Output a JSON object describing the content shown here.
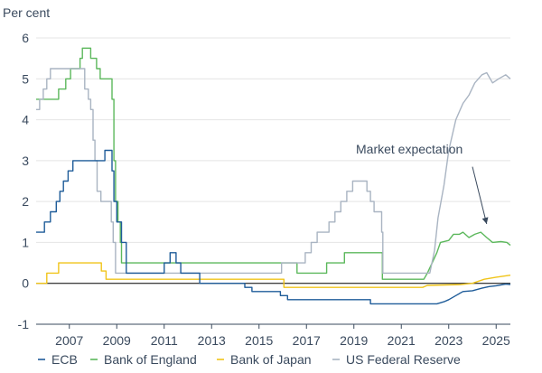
{
  "chart_data": {
    "type": "line",
    "ylabel": "Per cent",
    "ylim": [
      -1,
      6
    ],
    "y_ticks": [
      "-1",
      "0",
      "1",
      "2",
      "3",
      "4",
      "5",
      "6"
    ],
    "y_tick_values": [
      -1,
      0,
      1,
      2,
      3,
      4,
      5,
      6
    ],
    "xlim": [
      2005.6,
      2025.6
    ],
    "x_ticks": [
      "2007",
      "2009",
      "2011",
      "2013",
      "2015",
      "2017",
      "2019",
      "2021",
      "2023",
      "2025"
    ],
    "x_tick_values": [
      2007,
      2009,
      2011,
      2013,
      2015,
      2017,
      2019,
      2021,
      2023,
      2025
    ],
    "grid": "horizontal",
    "legend_position": "bottom",
    "annotation": {
      "text": "Market expectation",
      "arrow_from": [
        2024.0,
        2.85
      ],
      "arrow_to": [
        2024.6,
        1.45
      ]
    },
    "series": [
      {
        "name": "ECB",
        "color": "#1f5c99",
        "points": [
          [
            2005.6,
            1.25
          ],
          [
            2005.95,
            1.25
          ],
          [
            2005.95,
            1.5
          ],
          [
            2006.2,
            1.5
          ],
          [
            2006.2,
            1.75
          ],
          [
            2006.45,
            1.75
          ],
          [
            2006.45,
            2.0
          ],
          [
            2006.6,
            2.0
          ],
          [
            2006.6,
            2.25
          ],
          [
            2006.75,
            2.25
          ],
          [
            2006.75,
            2.5
          ],
          [
            2006.95,
            2.5
          ],
          [
            2006.95,
            2.75
          ],
          [
            2007.15,
            2.75
          ],
          [
            2007.15,
            3.0
          ],
          [
            2008.5,
            3.0
          ],
          [
            2008.5,
            3.25
          ],
          [
            2008.8,
            3.25
          ],
          [
            2008.8,
            2.75
          ],
          [
            2008.88,
            2.75
          ],
          [
            2008.88,
            2.0
          ],
          [
            2009.0,
            2.0
          ],
          [
            2009.0,
            1.5
          ],
          [
            2009.2,
            1.5
          ],
          [
            2009.2,
            1.0
          ],
          [
            2009.4,
            1.0
          ],
          [
            2009.4,
            0.25
          ],
          [
            2011.0,
            0.25
          ],
          [
            2011.0,
            0.5
          ],
          [
            2011.25,
            0.5
          ],
          [
            2011.25,
            0.75
          ],
          [
            2011.5,
            0.75
          ],
          [
            2011.5,
            0.5
          ],
          [
            2011.7,
            0.5
          ],
          [
            2011.7,
            0.25
          ],
          [
            2012.5,
            0.25
          ],
          [
            2012.5,
            0.0
          ],
          [
            2014.4,
            0.0
          ],
          [
            2014.4,
            -0.1
          ],
          [
            2014.7,
            -0.1
          ],
          [
            2014.7,
            -0.2
          ],
          [
            2015.9,
            -0.2
          ],
          [
            2015.9,
            -0.3
          ],
          [
            2016.2,
            -0.3
          ],
          [
            2016.2,
            -0.4
          ],
          [
            2019.7,
            -0.4
          ],
          [
            2019.7,
            -0.5
          ],
          [
            2022.5,
            -0.5
          ],
          [
            2022.8,
            -0.45
          ],
          [
            2023.0,
            -0.4
          ],
          [
            2023.3,
            -0.3
          ],
          [
            2023.6,
            -0.2
          ],
          [
            2024.0,
            -0.18
          ],
          [
            2024.4,
            -0.12
          ],
          [
            2024.7,
            -0.08
          ],
          [
            2025.0,
            -0.06
          ],
          [
            2025.4,
            -0.02
          ],
          [
            2025.6,
            -0.03
          ]
        ]
      },
      {
        "name": "Bank of England",
        "color": "#5cb85c",
        "points": [
          [
            2005.6,
            4.5
          ],
          [
            2006.55,
            4.5
          ],
          [
            2006.55,
            4.75
          ],
          [
            2006.85,
            4.75
          ],
          [
            2006.85,
            5.0
          ],
          [
            2007.05,
            5.0
          ],
          [
            2007.05,
            5.25
          ],
          [
            2007.45,
            5.25
          ],
          [
            2007.45,
            5.5
          ],
          [
            2007.55,
            5.5
          ],
          [
            2007.55,
            5.75
          ],
          [
            2007.9,
            5.75
          ],
          [
            2007.9,
            5.5
          ],
          [
            2008.15,
            5.5
          ],
          [
            2008.15,
            5.25
          ],
          [
            2008.3,
            5.25
          ],
          [
            2008.3,
            5.0
          ],
          [
            2008.8,
            5.0
          ],
          [
            2008.8,
            4.5
          ],
          [
            2008.88,
            4.5
          ],
          [
            2008.88,
            3.0
          ],
          [
            2008.95,
            3.0
          ],
          [
            2008.95,
            2.0
          ],
          [
            2009.05,
            2.0
          ],
          [
            2009.05,
            1.5
          ],
          [
            2009.15,
            1.5
          ],
          [
            2009.15,
            1.0
          ],
          [
            2009.2,
            1.0
          ],
          [
            2009.2,
            0.5
          ],
          [
            2016.6,
            0.5
          ],
          [
            2016.6,
            0.25
          ],
          [
            2017.85,
            0.25
          ],
          [
            2017.85,
            0.5
          ],
          [
            2018.6,
            0.5
          ],
          [
            2018.6,
            0.75
          ],
          [
            2020.2,
            0.75
          ],
          [
            2020.2,
            0.1
          ],
          [
            2021.95,
            0.1
          ],
          [
            2022.1,
            0.25
          ],
          [
            2022.3,
            0.5
          ],
          [
            2022.5,
            0.75
          ],
          [
            2022.65,
            1.0
          ],
          [
            2023.0,
            1.05
          ],
          [
            2023.2,
            1.2
          ],
          [
            2023.45,
            1.2
          ],
          [
            2023.6,
            1.25
          ],
          [
            2023.85,
            1.12
          ],
          [
            2024.1,
            1.2
          ],
          [
            2024.35,
            1.25
          ],
          [
            2024.6,
            1.12
          ],
          [
            2024.85,
            1.0
          ],
          [
            2025.2,
            1.02
          ],
          [
            2025.45,
            1.0
          ],
          [
            2025.6,
            0.93
          ]
        ]
      },
      {
        "name": "Bank of Japan",
        "color": "#f0c419",
        "points": [
          [
            2005.6,
            0.0
          ],
          [
            2006.05,
            0.0
          ],
          [
            2006.05,
            0.25
          ],
          [
            2006.55,
            0.25
          ],
          [
            2006.55,
            0.5
          ],
          [
            2008.35,
            0.5
          ],
          [
            2008.35,
            0.3
          ],
          [
            2008.55,
            0.3
          ],
          [
            2008.55,
            0.1
          ],
          [
            2016.05,
            0.1
          ],
          [
            2016.05,
            -0.1
          ],
          [
            2021.9,
            -0.1
          ],
          [
            2022.1,
            -0.05
          ],
          [
            2023.5,
            -0.03
          ],
          [
            2024.0,
            0.0
          ],
          [
            2024.5,
            0.1
          ],
          [
            2025.0,
            0.15
          ],
          [
            2025.6,
            0.2
          ]
        ]
      },
      {
        "name": "US Federal Reserve",
        "color": "#a9b4c2",
        "points": [
          [
            2005.6,
            4.25
          ],
          [
            2005.75,
            4.25
          ],
          [
            2005.75,
            4.5
          ],
          [
            2005.9,
            4.5
          ],
          [
            2005.9,
            4.75
          ],
          [
            2006.05,
            4.75
          ],
          [
            2006.05,
            5.0
          ],
          [
            2006.2,
            5.0
          ],
          [
            2006.2,
            5.25
          ],
          [
            2007.65,
            5.25
          ],
          [
            2007.65,
            4.75
          ],
          [
            2007.8,
            4.75
          ],
          [
            2007.8,
            4.5
          ],
          [
            2007.9,
            4.5
          ],
          [
            2007.9,
            4.25
          ],
          [
            2008.0,
            4.25
          ],
          [
            2008.0,
            3.5
          ],
          [
            2008.08,
            3.5
          ],
          [
            2008.08,
            3.0
          ],
          [
            2008.17,
            3.0
          ],
          [
            2008.17,
            2.25
          ],
          [
            2008.33,
            2.25
          ],
          [
            2008.33,
            2.0
          ],
          [
            2008.77,
            2.0
          ],
          [
            2008.77,
            1.5
          ],
          [
            2008.85,
            1.5
          ],
          [
            2008.85,
            1.0
          ],
          [
            2008.95,
            1.0
          ],
          [
            2008.95,
            0.25
          ],
          [
            2015.95,
            0.25
          ],
          [
            2015.95,
            0.5
          ],
          [
            2016.95,
            0.5
          ],
          [
            2016.95,
            0.75
          ],
          [
            2017.2,
            0.75
          ],
          [
            2017.2,
            1.0
          ],
          [
            2017.45,
            1.0
          ],
          [
            2017.45,
            1.25
          ],
          [
            2017.95,
            1.25
          ],
          [
            2017.95,
            1.5
          ],
          [
            2018.2,
            1.5
          ],
          [
            2018.2,
            1.75
          ],
          [
            2018.45,
            1.75
          ],
          [
            2018.45,
            2.0
          ],
          [
            2018.7,
            2.0
          ],
          [
            2018.7,
            2.25
          ],
          [
            2018.95,
            2.25
          ],
          [
            2018.95,
            2.5
          ],
          [
            2019.55,
            2.5
          ],
          [
            2019.55,
            2.25
          ],
          [
            2019.7,
            2.25
          ],
          [
            2019.7,
            2.0
          ],
          [
            2019.85,
            2.0
          ],
          [
            2019.85,
            1.75
          ],
          [
            2020.17,
            1.75
          ],
          [
            2020.17,
            1.25
          ],
          [
            2020.22,
            1.25
          ],
          [
            2020.22,
            0.25
          ],
          [
            2022.2,
            0.25
          ],
          [
            2022.4,
            0.8
          ],
          [
            2022.55,
            1.6
          ],
          [
            2022.8,
            2.4
          ],
          [
            2023.0,
            3.25
          ],
          [
            2023.3,
            4.0
          ],
          [
            2023.6,
            4.4
          ],
          [
            2023.85,
            4.6
          ],
          [
            2024.1,
            4.9
          ],
          [
            2024.4,
            5.1
          ],
          [
            2024.6,
            5.15
          ],
          [
            2024.85,
            4.9
          ],
          [
            2025.1,
            5.0
          ],
          [
            2025.4,
            5.1
          ],
          [
            2025.6,
            5.0
          ]
        ]
      }
    ]
  }
}
